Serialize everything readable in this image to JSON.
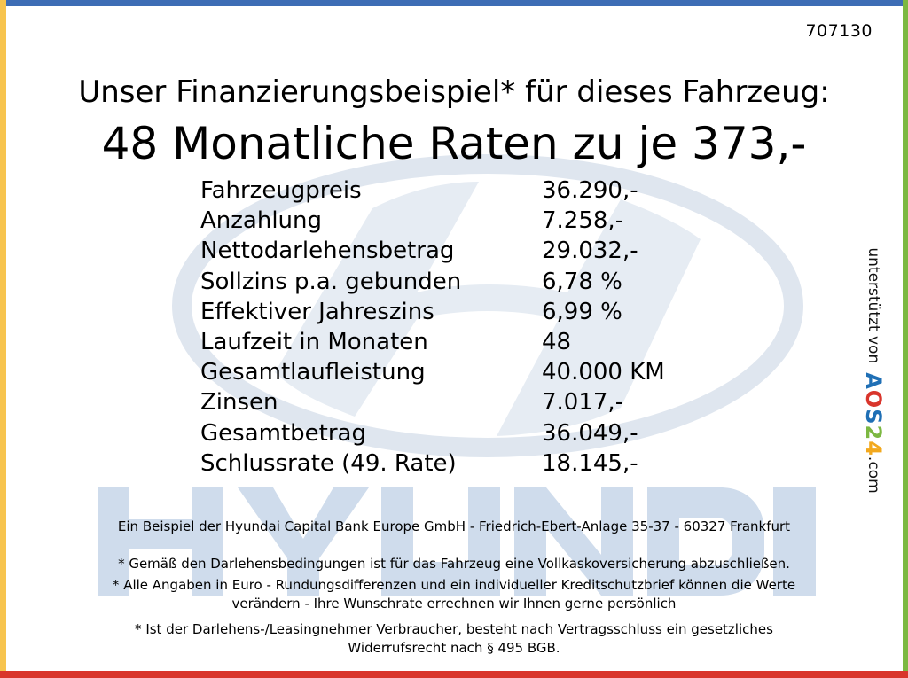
{
  "colors": {
    "top_bar": "#3d6db5",
    "left_bar": "#f7c44e",
    "right_bar": "#7cb842",
    "bottom_bar": "#d9352c",
    "watermark": "#c8d7ea",
    "logo_blue": "#1f6fb5",
    "logo_red": "#d9352c",
    "logo_green": "#7cb842",
    "logo_yellow": "#f2a81d"
  },
  "reference_number": "707130",
  "headline": {
    "line1": "Unser Finanzierungsbeispiel* für dieses Fahrzeug:",
    "line2": "48 Monatliche Raten zu je 373,-"
  },
  "financing": [
    {
      "label": "Fahrzeugpreis",
      "value": "36.290,-"
    },
    {
      "label": "Anzahlung",
      "value": "7.258,-"
    },
    {
      "label": "Nettodarlehensbetrag",
      "value": "29.032,-"
    },
    {
      "label": "Sollzins p.a. gebunden",
      "value": "6,78 %"
    },
    {
      "label": "Effektiver Jahreszins",
      "value": "6,99 %"
    },
    {
      "label": "Laufzeit in Monaten",
      "value": "48"
    },
    {
      "label": "Gesamtlaufleistung",
      "value": "40.000 KM"
    },
    {
      "label": "Zinsen",
      "value": "7.017,-"
    },
    {
      "label": "Gesamtbetrag",
      "value": "36.049,-"
    },
    {
      "label": "Schlussrate (49. Rate)",
      "value": "18.145,-"
    }
  ],
  "sidebar": {
    "supported_by": "unterstützt von",
    "brand_letters": [
      "A",
      "O",
      "S",
      "2",
      "4"
    ],
    "domain": ".com"
  },
  "footer": {
    "bank_line": "Ein Beispiel der Hyundai Capital Bank Europe GmbH - Friedrich-Ebert-Anlage 35-37 - 60327 Frankfurt",
    "insurance_note": "* Gemäß den Darlehensbedingungen ist für das Fahrzeug eine Vollkaskoversicherung abzuschließen.",
    "euro_note_line1": "* Alle Angaben in Euro - Rundungsdifferenzen und ein individueller Kreditschutzbrief können die Werte",
    "euro_note_line2": "verändern - Ihre Wunschrate errechnen wir Ihnen gerne persönlich",
    "withdrawal_line1": "* Ist der Darlehens-/Leasingnehmer Verbraucher, besteht nach Vertragsschluss ein gesetzliches",
    "withdrawal_line2": "Widerrufsrecht nach § 495 BGB."
  }
}
